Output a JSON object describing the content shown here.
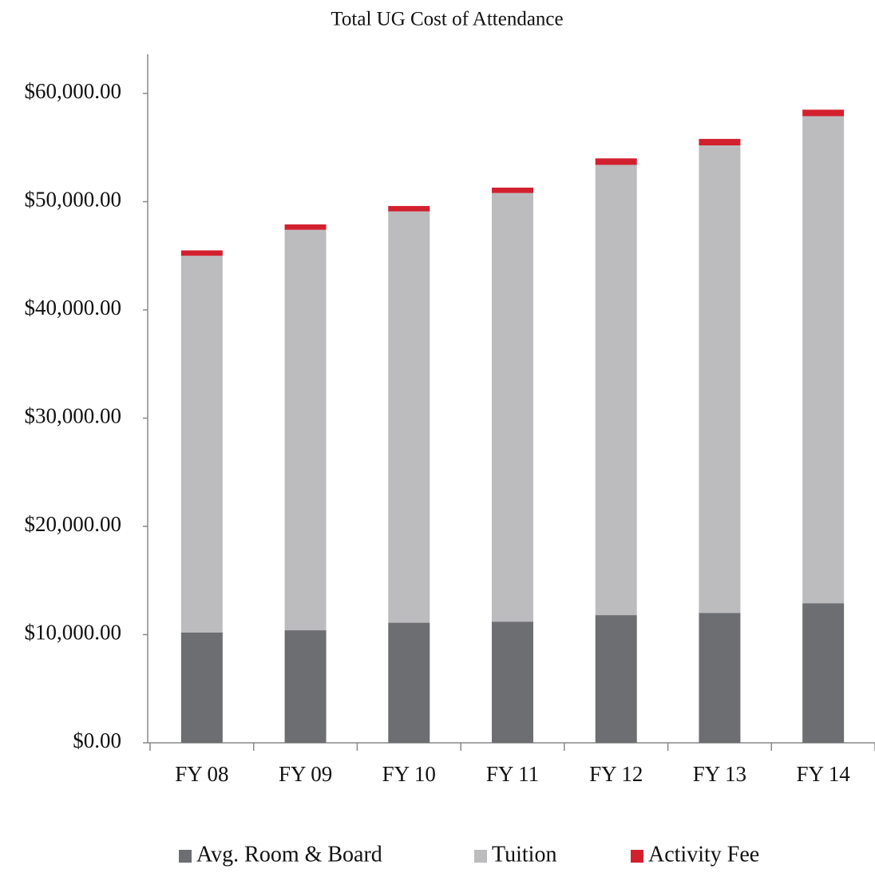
{
  "chart_data": {
    "type": "bar",
    "stacked": true,
    "title": "Total UG Cost of Attendance",
    "categories": [
      "FY 08",
      "FY 09",
      "FY 10",
      "FY 11",
      "FY 12",
      "FY 13",
      "FY 14"
    ],
    "series": [
      {
        "name": "Avg. Room & Board",
        "color": "#6d6e71",
        "values": [
          10200,
          10400,
          11100,
          11200,
          11800,
          12000,
          12900
        ]
      },
      {
        "name": "Tuition",
        "color": "#bcbcbe",
        "values": [
          34800,
          37000,
          38000,
          39600,
          41600,
          43200,
          45000
        ]
      },
      {
        "name": "Activity Fee",
        "color": "#d2202f",
        "values": [
          500,
          500,
          500,
          500,
          600,
          600,
          600
        ]
      }
    ],
    "ylim": [
      0,
      60000
    ],
    "yticks": [
      {
        "value": 0,
        "label": "$0.00"
      },
      {
        "value": 10000,
        "label": "$10,000.00"
      },
      {
        "value": 20000,
        "label": "$20,000.00"
      },
      {
        "value": 30000,
        "label": "$30,000.00"
      },
      {
        "value": 40000,
        "label": "$40,000.00"
      },
      {
        "value": 50000,
        "label": "$50,000.00"
      },
      {
        "value": 60000,
        "label": "$60,000.00"
      }
    ],
    "grid": false,
    "legend": "bottom"
  }
}
